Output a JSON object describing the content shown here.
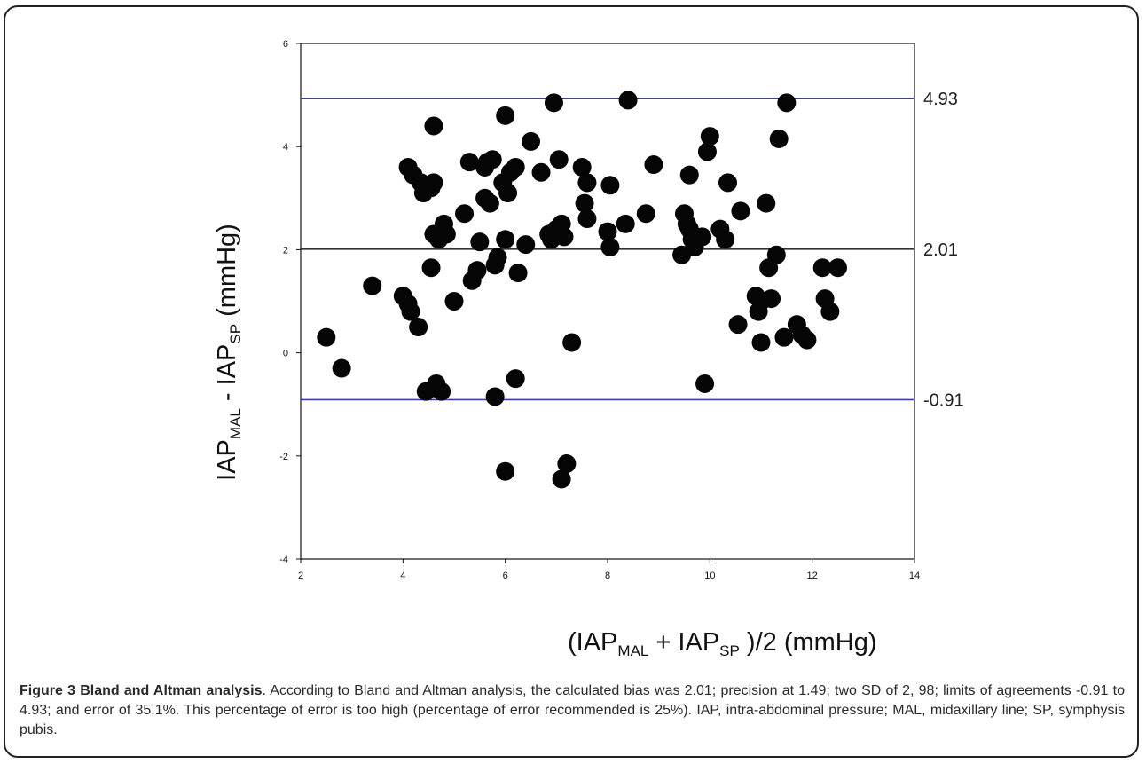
{
  "chart_data": {
    "type": "scatter",
    "title": "",
    "xlim": [
      2,
      14
    ],
    "ylim": [
      -4,
      6
    ],
    "x_ticks": [
      "2",
      "4",
      "6",
      "8",
      "10",
      "12",
      "14"
    ],
    "y_ticks": [
      "-4",
      "-2",
      "0",
      "2",
      "4",
      "6"
    ],
    "xlabel": {
      "pre": "(IAP",
      "sub1": "MAL",
      "mid": " + IAP",
      "sub2": "SP",
      "post": " )/2 (mmHg)"
    },
    "ylabel": {
      "pre": "IAP",
      "sub1": "MAL",
      "mid": " - IAP",
      "sub2": "SP",
      "post": " (mmHg)"
    },
    "reference_lines": [
      {
        "y": 4.93,
        "label": "4.93",
        "color": "#3a3fa0"
      },
      {
        "y": 2.01,
        "label": "2.01",
        "color": "#333333"
      },
      {
        "y": -0.91,
        "label": "-0.91",
        "color": "#3a3fa0"
      }
    ],
    "points": [
      [
        2.5,
        0.3
      ],
      [
        2.8,
        -0.3
      ],
      [
        3.4,
        1.3
      ],
      [
        4.0,
        1.1
      ],
      [
        4.1,
        0.95
      ],
      [
        4.15,
        0.8
      ],
      [
        4.1,
        3.6
      ],
      [
        4.2,
        3.45
      ],
      [
        4.3,
        0.5
      ],
      [
        4.35,
        3.3
      ],
      [
        4.4,
        3.1
      ],
      [
        4.45,
        -0.75
      ],
      [
        4.55,
        3.2
      ],
      [
        4.6,
        3.3
      ],
      [
        4.55,
        1.65
      ],
      [
        4.6,
        2.3
      ],
      [
        4.65,
        -0.6
      ],
      [
        4.7,
        2.2
      ],
      [
        4.75,
        -0.75
      ],
      [
        4.8,
        2.5
      ],
      [
        4.85,
        2.3
      ],
      [
        4.6,
        4.4
      ],
      [
        5.0,
        1.0
      ],
      [
        5.2,
        2.7
      ],
      [
        5.3,
        3.7
      ],
      [
        5.35,
        1.4
      ],
      [
        5.45,
        1.6
      ],
      [
        5.5,
        2.15
      ],
      [
        5.6,
        3.0
      ],
      [
        5.6,
        3.6
      ],
      [
        5.65,
        3.7
      ],
      [
        5.7,
        2.9
      ],
      [
        5.75,
        3.75
      ],
      [
        5.8,
        1.7
      ],
      [
        5.85,
        1.85
      ],
      [
        5.8,
        -0.85
      ],
      [
        5.95,
        3.3
      ],
      [
        6.0,
        2.2
      ],
      [
        6.0,
        4.6
      ],
      [
        6.05,
        3.1
      ],
      [
        6.1,
        3.5
      ],
      [
        6.2,
        3.6
      ],
      [
        6.25,
        1.55
      ],
      [
        6.2,
        -0.5
      ],
      [
        6.4,
        2.1
      ],
      [
        6.5,
        4.1
      ],
      [
        6.7,
        3.5
      ],
      [
        6.85,
        2.3
      ],
      [
        6.9,
        2.2
      ],
      [
        7.0,
        2.4
      ],
      [
        6.95,
        4.85
      ],
      [
        7.05,
        3.75
      ],
      [
        7.1,
        2.5
      ],
      [
        7.15,
        2.25
      ],
      [
        6.0,
        -2.3
      ],
      [
        7.1,
        -2.45
      ],
      [
        7.2,
        -2.15
      ],
      [
        7.3,
        0.2
      ],
      [
        7.5,
        3.6
      ],
      [
        7.6,
        3.3
      ],
      [
        7.55,
        2.9
      ],
      [
        7.6,
        2.6
      ],
      [
        8.0,
        2.35
      ],
      [
        8.05,
        2.05
      ],
      [
        8.05,
        3.25
      ],
      [
        8.35,
        2.5
      ],
      [
        8.4,
        4.9
      ],
      [
        8.75,
        2.7
      ],
      [
        8.9,
        3.65
      ],
      [
        9.45,
        1.9
      ],
      [
        9.5,
        2.7
      ],
      [
        9.55,
        2.5
      ],
      [
        9.6,
        2.4
      ],
      [
        9.6,
        3.45
      ],
      [
        9.65,
        2.2
      ],
      [
        9.7,
        2.05
      ],
      [
        9.85,
        2.25
      ],
      [
        9.95,
        3.9
      ],
      [
        10.0,
        4.2
      ],
      [
        9.9,
        -0.6
      ],
      [
        10.2,
        2.4
      ],
      [
        10.3,
        2.2
      ],
      [
        10.35,
        3.3
      ],
      [
        10.55,
        0.55
      ],
      [
        10.6,
        2.75
      ],
      [
        10.9,
        1.1
      ],
      [
        10.95,
        0.8
      ],
      [
        11.0,
        0.2
      ],
      [
        11.0,
        1.0
      ],
      [
        11.1,
        2.9
      ],
      [
        11.15,
        1.65
      ],
      [
        11.2,
        1.05
      ],
      [
        11.3,
        1.9
      ],
      [
        11.35,
        4.15
      ],
      [
        11.45,
        0.3
      ],
      [
        11.5,
        4.85
      ],
      [
        11.7,
        0.55
      ],
      [
        11.8,
        0.35
      ],
      [
        11.9,
        0.25
      ],
      [
        12.2,
        1.65
      ],
      [
        12.25,
        1.05
      ],
      [
        12.35,
        0.8
      ],
      [
        12.5,
        1.65
      ]
    ]
  },
  "caption": {
    "label": "Figure 3 Bland and Altman analysis",
    "text": ". According to Bland and Altman analysis, the calculated bias was 2.01; precision at 1.49; two SD of 2, 98; limits of agreements -0.91 to 4.93; and error of 35.1%. This percentage of error is too high (percentage of error recommended is 25%). IAP, intra-abdominal pressure; MAL, midaxillary line; SP, symphysis pubis."
  }
}
